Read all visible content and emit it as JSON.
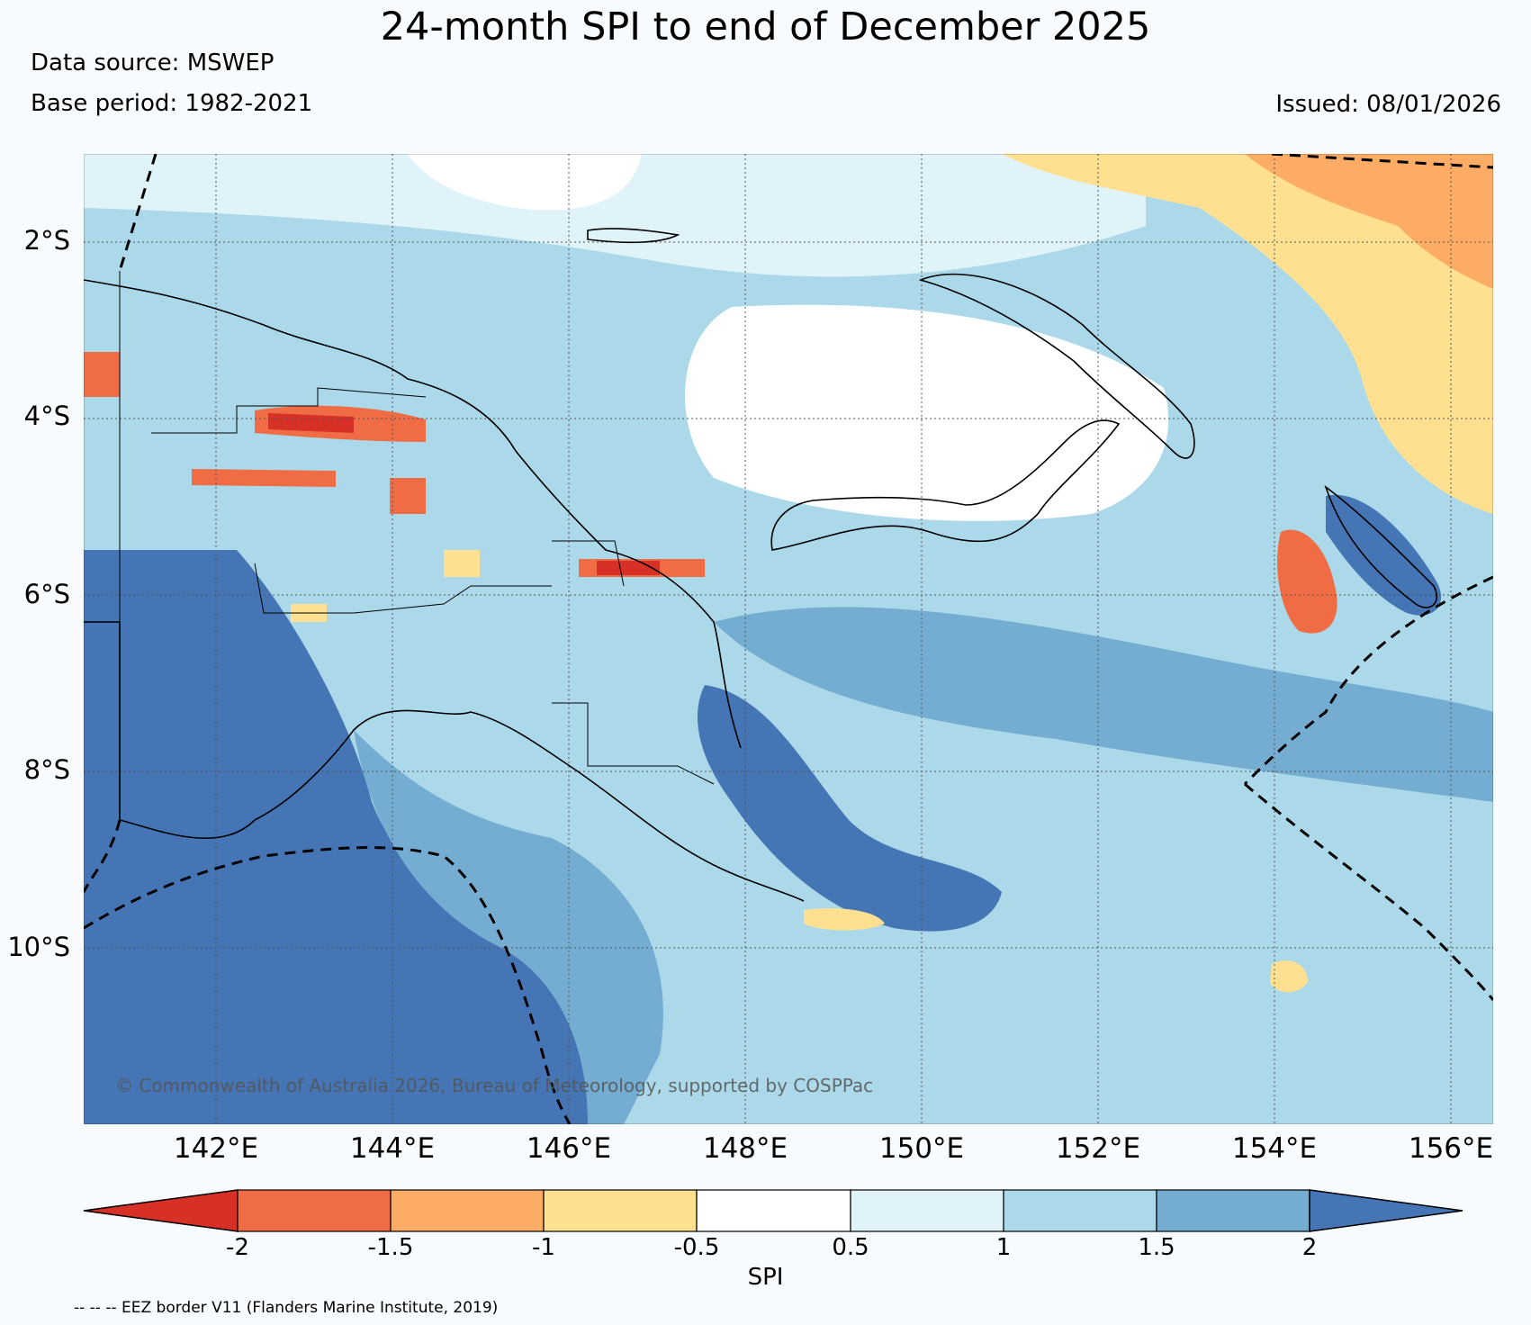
{
  "title": "24-month SPI to end of December 2025",
  "data_source": "Data source: MSWEP",
  "base_period": "Base period: 1982-2021",
  "issued": "Issued: 08/01/2026",
  "copyright": "© Commonwealth of Australia 2026, Bureau of Meteorology, supported by COSPPac",
  "lat_labels": [
    "2°S",
    "4°S",
    "6°S",
    "8°S",
    "10°S"
  ],
  "lon_labels": [
    "142°E",
    "144°E",
    "146°E",
    "148°E",
    "150°E",
    "152°E",
    "154°E",
    "156°E"
  ],
  "colorbar": {
    "label": "SPI",
    "ticks": [
      "-2",
      "-1.5",
      "-1",
      "-0.5",
      "0.5",
      "1",
      "1.5",
      "2"
    ],
    "colors": [
      "#d73027",
      "#f06c45",
      "#fcac64",
      "#fee090",
      "#ffffff",
      "#e0f3f8",
      "#abd9e9",
      "#74add1",
      "#4575b4"
    ]
  },
  "legend_note": "-- -- -- EEZ border V11 (Flanders Marine Institute, 2019)",
  "colors": {
    "strong_wet": "#4575b4",
    "wet": "#74add1",
    "moderate_wet": "#abd9e9",
    "slight_wet": "#e0f3f8",
    "neutral": "#ffffff",
    "slight_dry": "#fee090",
    "dry": "#fcac64",
    "very_dry": "#f06c45",
    "extreme_dry": "#d73027"
  }
}
